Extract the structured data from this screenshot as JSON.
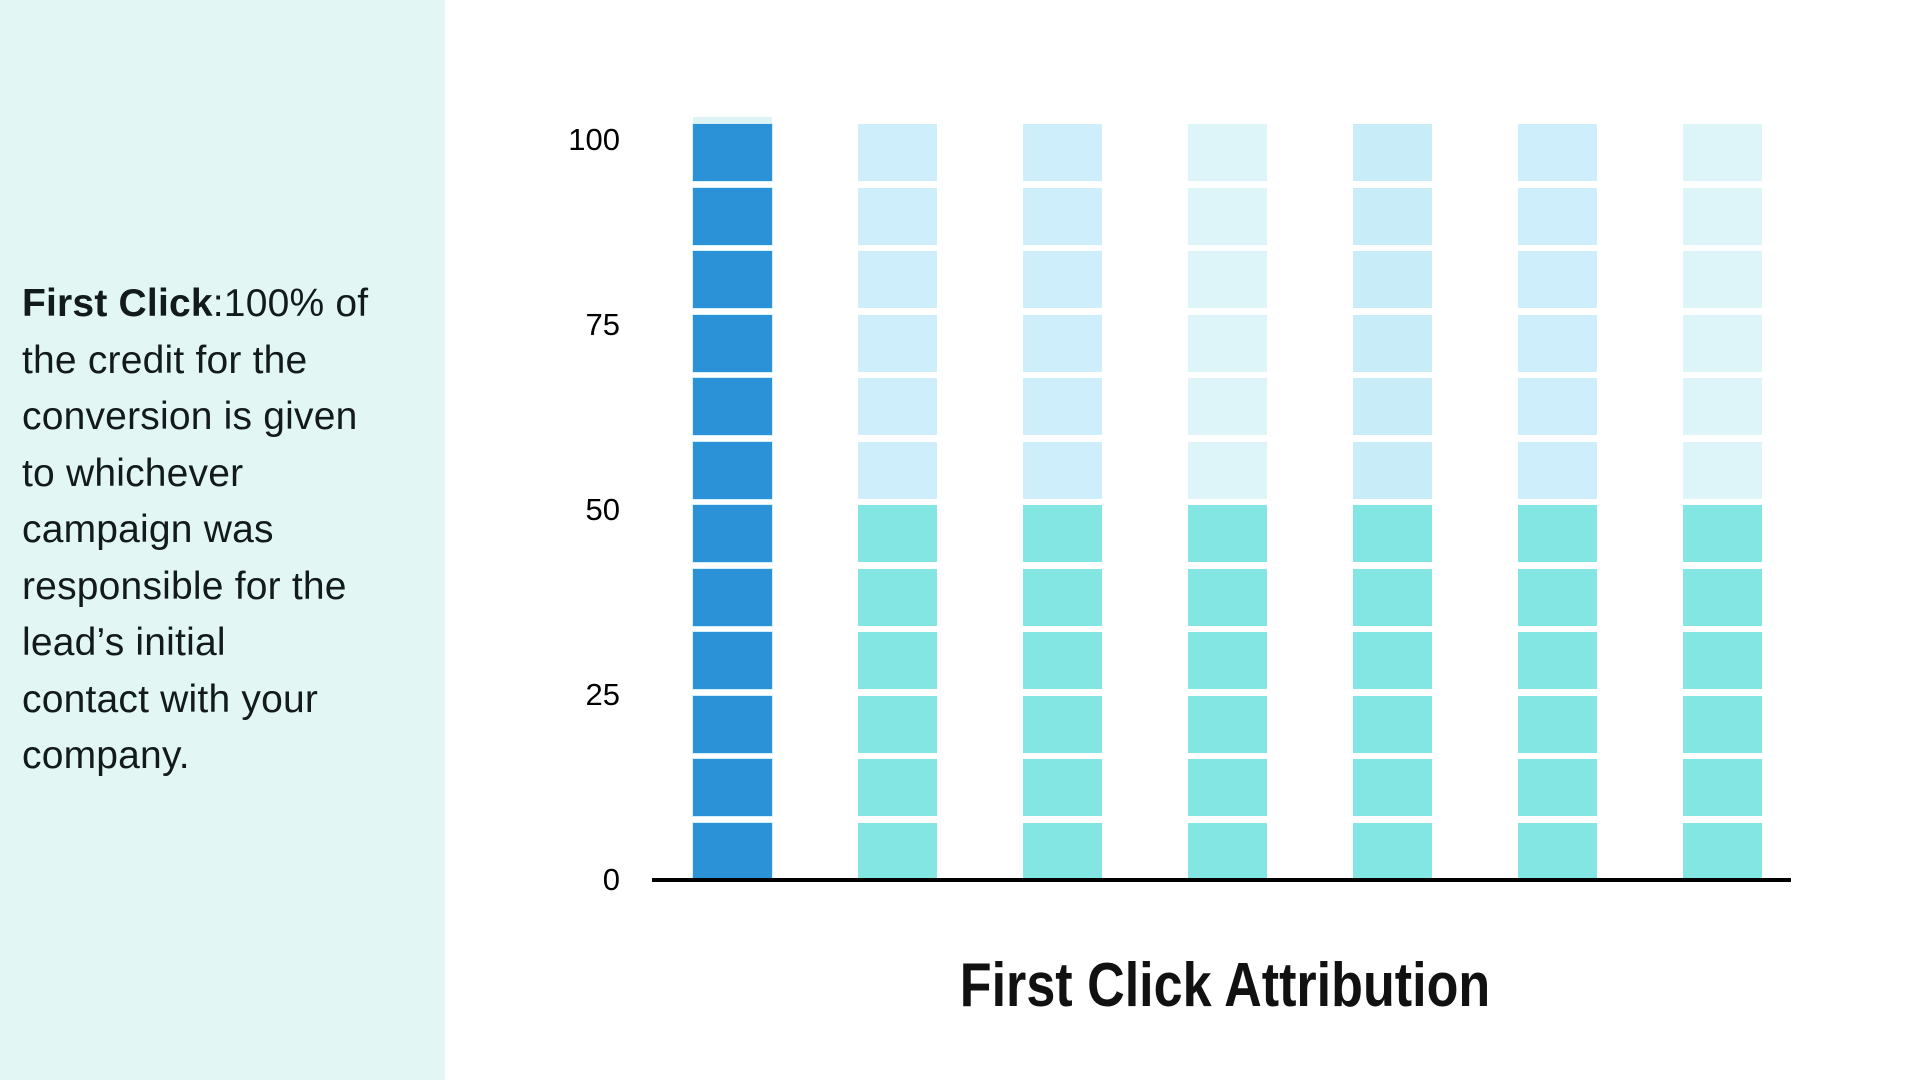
{
  "left_panel": {
    "bg": "#e2f7f4",
    "text_color": "#121a1c",
    "term": "First Click",
    "lines": [
      ":100% of",
      "the credit for the",
      "conversion is given",
      "to whichever",
      "campaign was",
      "responsible for the",
      "lead’s initial",
      "contact with your",
      "company."
    ],
    "full_text": "First Click:100% of the credit for the conversion is given to whichever campaign was responsible for the lead’s initial contact with your company."
  },
  "chart_data": {
    "type": "bar",
    "title": "First Click Attribution",
    "title_position": "below",
    "xlabel": "",
    "ylabel": "",
    "ylim": [
      0,
      100
    ],
    "yticks": [
      "100",
      "75",
      "50",
      "25",
      "0"
    ],
    "grid": false,
    "legend": false,
    "blocks_per_column": 12,
    "colors": {
      "first_click_blue": "#2b92d8",
      "other_touch_teal": "#84e6e3",
      "faded_top_light_blue": "#cdeefa",
      "faded_top_pale_cyan": "#ddf5f8",
      "axis": "#000000",
      "cap_strip": "#dcf4f6"
    },
    "columns": [
      {
        "height": 100,
        "highlight": true,
        "cap_color": "#dcf4f6",
        "segments": [
          {
            "color": "#2b92d8",
            "blocks": 12,
            "edge": "#d2effa"
          }
        ]
      },
      {
        "height": 100,
        "highlight": false,
        "segments": [
          {
            "color": "#cdeefa",
            "blocks": 6
          },
          {
            "color": "#84e6e3",
            "blocks": 6
          }
        ]
      },
      {
        "height": 100,
        "highlight": false,
        "segments": [
          {
            "color": "#cdeefa",
            "blocks": 6
          },
          {
            "color": "#84e6e3",
            "blocks": 6
          }
        ]
      },
      {
        "height": 100,
        "highlight": false,
        "segments": [
          {
            "color": "#ddf5f8",
            "blocks": 6
          },
          {
            "color": "#84e6e3",
            "blocks": 6
          }
        ]
      },
      {
        "height": 100,
        "highlight": false,
        "segments": [
          {
            "color": "#c9ecf9",
            "blocks": 6
          },
          {
            "color": "#84e6e3",
            "blocks": 6
          }
        ]
      },
      {
        "height": 100,
        "highlight": false,
        "segments": [
          {
            "color": "#cdeefa",
            "blocks": 6
          },
          {
            "color": "#84e6e3",
            "blocks": 6
          }
        ]
      },
      {
        "height": 100,
        "highlight": false,
        "segments": [
          {
            "color": "#ddf5f8",
            "blocks": 6
          },
          {
            "color": "#84e6e3",
            "blocks": 6
          }
        ]
      }
    ]
  }
}
